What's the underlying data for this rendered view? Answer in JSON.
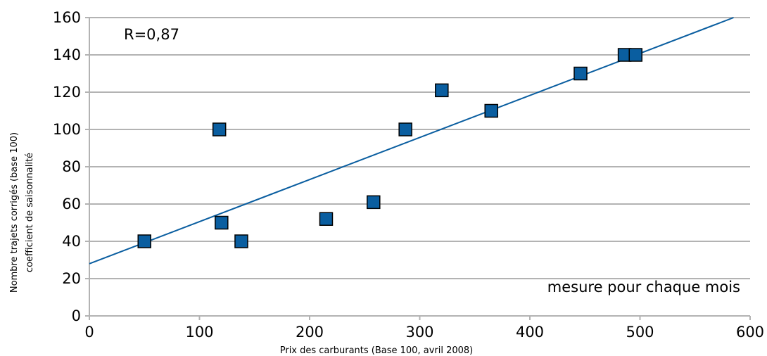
{
  "chart_data": {
    "type": "scatter",
    "title": "",
    "xlabel": "Prix des carburants (Base 100, avril 2008)",
    "ylabel_lines": [
      "Nombre  trajets corrigés (base 100)",
      "coefficient  de saisonnalité"
    ],
    "xlim": [
      0,
      600
    ],
    "ylim": [
      0,
      160
    ],
    "x_ticks": [
      0,
      100,
      200,
      300,
      400,
      500,
      600
    ],
    "y_ticks": [
      0,
      20,
      40,
      60,
      80,
      100,
      120,
      140,
      160
    ],
    "grid": "horizontal",
    "legend": "none",
    "points": [
      {
        "x": 50,
        "y": 40
      },
      {
        "x": 118,
        "y": 100
      },
      {
        "x": 120,
        "y": 50
      },
      {
        "x": 138,
        "y": 40
      },
      {
        "x": 215,
        "y": 52
      },
      {
        "x": 258,
        "y": 61
      },
      {
        "x": 287,
        "y": 100
      },
      {
        "x": 320,
        "y": 121
      },
      {
        "x": 365,
        "y": 110
      },
      {
        "x": 446,
        "y": 130
      },
      {
        "x": 486,
        "y": 140
      },
      {
        "x": 496,
        "y": 140
      }
    ],
    "trendline": {
      "x": [
        0,
        585
      ],
      "y": [
        28,
        160
      ]
    },
    "annotations": {
      "r_value": "R=0,87",
      "note": "mesure pour chaque mois"
    },
    "colors": {
      "marker_fill": "#0a5ea0",
      "marker_stroke": "#000000",
      "trendline": "#0a5ea0",
      "grid": "#b3b3b3",
      "axis": "#b3b3b3"
    }
  }
}
